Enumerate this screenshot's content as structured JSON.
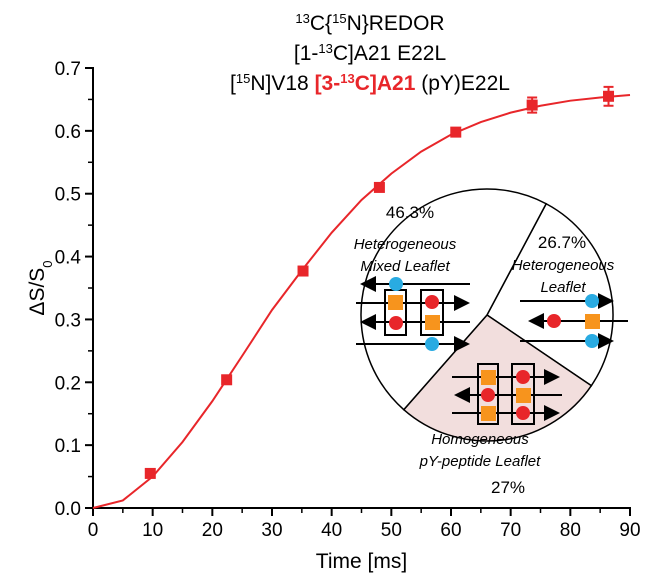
{
  "chart_data": [
    {
      "type": "scatter",
      "title": [
        [
          {
            "text": "13",
            "sup": true
          },
          {
            "text": "C{"
          },
          {
            "text": "15",
            "sup": true
          },
          {
            "text": "N}REDOR"
          }
        ],
        [
          {
            "text": "[1-"
          },
          {
            "text": "13",
            "sup": true
          },
          {
            "text": "C]A21 E22L"
          }
        ],
        [
          {
            "text": "["
          },
          {
            "text": "15",
            "sup": true
          },
          {
            "text": "N]V18 "
          },
          {
            "text": "[3-",
            "bold": true,
            "color": "#e8262a"
          },
          {
            "text": "13",
            "sup": true,
            "bold": true,
            "color": "#e8262a"
          },
          {
            "text": "C]A21",
            "bold": true,
            "color": "#e8262a"
          },
          {
            "text": " (pY)E22L"
          }
        ]
      ],
      "x_label": "Time [ms]",
      "y_label": [
        {
          "text": "ΔS/S"
        },
        {
          "text": "0",
          "sub": true
        }
      ],
      "xlim": [
        0,
        90
      ],
      "xticks": [
        0,
        10,
        20,
        30,
        40,
        50,
        60,
        70,
        80,
        90
      ],
      "ylim": [
        0,
        0.7
      ],
      "yticks": [
        {
          "value": 0,
          "label": "0.0"
        },
        0.1,
        0.2,
        0.3,
        0.4,
        0.5,
        0.6,
        0.7
      ],
      "series": [
        {
          "type": "scatter",
          "color": "#e8262a",
          "x": [
            9.6,
            22.4,
            35.2,
            48,
            60.8,
            73.6,
            86.4
          ],
          "values": [
            0.055,
            0.204,
            0.377,
            0.51,
            0.598,
            0.641,
            0.655
          ],
          "errors": [
            null,
            null,
            null,
            null,
            null,
            0.012,
            0.015
          ]
        },
        {
          "type": "line",
          "color": "#e8262a",
          "x": [
            0,
            5,
            10,
            15,
            20,
            25,
            30,
            35,
            40,
            45,
            50,
            55,
            60,
            65,
            70,
            75,
            80,
            85,
            90
          ],
          "values": [
            0,
            0.012,
            0.05,
            0.105,
            0.17,
            0.242,
            0.315,
            0.378,
            0.438,
            0.49,
            0.532,
            0.567,
            0.594,
            0.614,
            0.629,
            0.64,
            0.648,
            0.653,
            0.657
          ]
        }
      ]
    },
    {
      "type": "pie",
      "values": [
        26.7,
        27,
        46.3
      ],
      "value_labels": [
        "26.7%",
        "27%",
        "46.3%"
      ],
      "colors": [
        "#ffffff",
        "#f2dedd",
        "#ffffff"
      ],
      "slice_labels": [
        [
          "Heterogeneous",
          "Leaflet"
        ],
        [
          "Homogeneous",
          "pY-peptide Leaflet"
        ],
        [
          "Heterogeneous",
          "Mixed Leaflet"
        ]
      ]
    }
  ]
}
